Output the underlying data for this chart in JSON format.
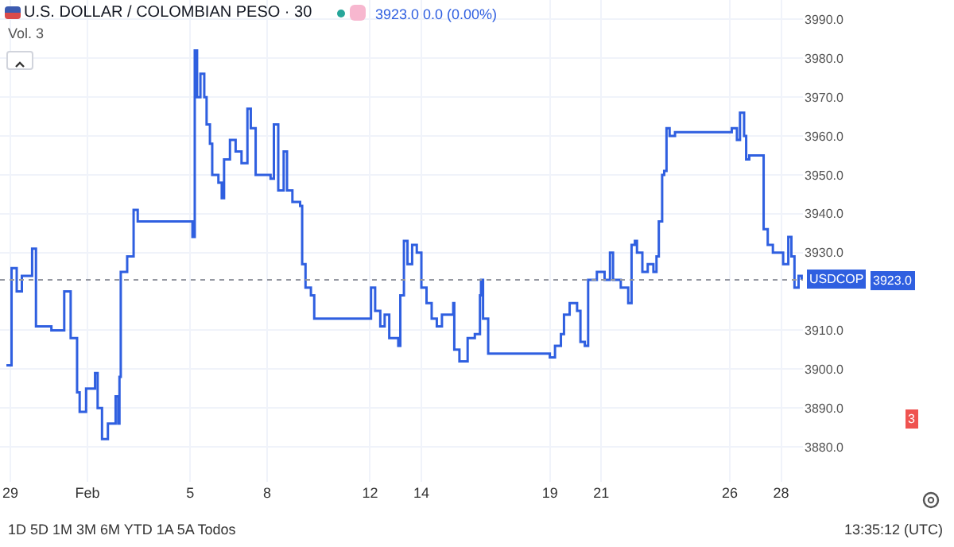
{
  "chart_data": {
    "type": "step",
    "title": "U.S. DOLLAR / COLOMBIAN PESO · 30",
    "x": [
      "--01-28T20:24",
      "--01-29T01:12",
      "--01-29T06:00",
      "--01-29T10:48",
      "--01-29T20:24",
      "--01-30T00:00",
      "--01-30T14:24",
      "--01-31T02:24",
      "--01-31T08:24",
      "--01-31T14:24",
      "--01-31T16:48",
      "--01-31T22:48",
      "--02-01T07:12",
      "--02-01T09:36",
      "--02-01T13:41",
      "--02-01T19:12",
      "--02-02T02:24",
      "--02-02T04:48",
      "--02-02T06:00",
      "--02-02T07:12",
      "--02-02T13:12",
      "--02-02T19:12",
      "--02-02T23:02",
      "--02-05T02:10",
      "--02-05T04:19",
      "--02-05T06:29",
      "--02-05T09:36",
      "--02-05T13:12",
      "--02-05T15:22",
      "--02-05T18:29",
      "--02-05T20:38",
      "--02-06T02:24",
      "--02-06T05:31",
      "--02-06T07:41",
      "--02-06T13:12",
      "--02-06T18:29",
      "--02-07T00:00",
      "--02-07T05:31",
      "--02-07T08:38",
      "--02-07T13:12",
      "--02-07T21:36",
      "--02-08T03:07",
      "--02-08T06:14",
      "--02-08T10:19",
      "--02-08T15:22",
      "--02-08T18:29",
      "--02-08T23:31",
      "--02-09T06:43",
      "--02-09T08:38",
      "--02-09T11:46",
      "--02-09T16:48",
      "--02-09T19:55",
      "--02-12T00:58",
      "--02-12T04:48",
      "--02-12T09:36",
      "--02-12T13:41",
      "--02-12T18:00",
      "--02-13T02:24",
      "--02-13T04:19",
      "--02-13T07:41",
      "--02-13T11:02",
      "--02-13T15:22",
      "--02-13T19:41",
      "--02-14T00:00",
      "--02-14T04:48",
      "--02-14T09:36",
      "--02-14T14:24",
      "--02-14T19:12",
      "--02-15T05:46",
      "--02-15T06:43",
      "--02-15T11:31",
      "--02-15T19:12",
      "--02-16T01:55",
      "--02-16T06:43",
      "--02-16T07:41",
      "--02-16T09:36",
      "--02-16T14:24",
      "--02-19T00:00",
      "--02-19T04:48",
      "--02-19T10:19",
      "--02-19T13:12",
      "--02-19T18:29",
      "--02-20T01:26",
      "--02-20T04:34",
      "--02-20T08:38",
      "--02-20T11:46",
      "--02-20T19:55",
      "--02-21T03:07",
      "--02-21T08:10",
      "--02-21T11:02",
      "--02-21T18:14",
      "--02-22T01:12",
      "--02-22T04:19",
      "--02-22T07:26",
      "--02-22T09:22",
      "--02-22T14:24",
      "--02-22T19:26",
      "--02-23T00:43",
      "--02-23T03:36",
      "--02-23T05:46",
      "--02-23T08:53",
      "--02-23T10:48",
      "--02-23T12:58",
      "--02-23T15:50",
      "--02-23T20:53",
      "--02-26T01:55",
      "--02-26T06:43",
      "--02-26T09:36",
      "--02-26T13:26",
      "--02-26T15:22",
      "--02-26T18:14",
      "--02-27T06:43",
      "--02-27T07:41",
      "--02-27T11:31",
      "--02-27T16:19",
      "--02-27T21:07",
      "--02-28T01:55",
      "--02-28T06:43",
      "--02-28T09:36",
      "--02-28T12:29",
      "--02-28T16:19",
      "--02-28T19:12"
    ],
    "series": [
      {
        "color": "#2f5fe0",
        "values": [
          3901,
          3926,
          3920,
          3924,
          3931,
          3911,
          3910,
          3920,
          3908,
          3894,
          3889,
          3895,
          3899,
          3890,
          3882,
          3886,
          3893,
          3886,
          3898,
          3925,
          3929,
          3941,
          3938,
          3934,
          3982,
          3970,
          3976,
          3970,
          3963,
          3958,
          3950,
          3948,
          3944,
          3954,
          3959,
          3956,
          3953,
          3967,
          3962,
          3950,
          3950,
          3949,
          3963,
          3946,
          3956,
          3946,
          3943,
          3942,
          3927,
          3921,
          3919,
          3913,
          3921,
          3915,
          3911,
          3914,
          3908,
          3906,
          3919,
          3933,
          3927,
          3932,
          3930,
          3921,
          3917,
          3913,
          3911,
          3914,
          3917,
          3905,
          3902,
          3908,
          3909,
          3919,
          3923,
          3913,
          3904,
          3903,
          3906,
          3909,
          3914,
          3917,
          3915,
          3907,
          3906,
          3923,
          3925,
          3923,
          3930,
          3923,
          3921,
          3917,
          3932,
          3933,
          3930,
          3925,
          3927,
          3925,
          3929,
          3938,
          3950,
          3951,
          3962,
          3960,
          3961,
          3962,
          3959,
          3966,
          3960,
          3954,
          3955,
          3955,
          3936,
          3932,
          3930,
          3930,
          3927,
          3934,
          3929,
          3921,
          3924,
          3923
        ]
      }
    ],
    "xlim": [
      "--01-28T14:24",
      "--02-28T20:24"
    ],
    "xticks": [
      {
        "value": "--01-29",
        "label": "29"
      },
      {
        "value": "--02-01",
        "label": "Feb"
      },
      {
        "value": "--02-05",
        "label": "5"
      },
      {
        "value": "--02-08",
        "label": "8"
      },
      {
        "value": "--02-12",
        "label": "12"
      },
      {
        "value": "--02-14",
        "label": "14"
      },
      {
        "value": "--02-19",
        "label": "19"
      },
      {
        "value": "--02-21",
        "label": "21"
      },
      {
        "value": "--02-26",
        "label": "26"
      },
      {
        "value": "--02-28",
        "label": "28"
      }
    ],
    "ylim": [
      3871,
      3995
    ],
    "yticks": [
      {
        "value": 3880,
        "label": "3880.0"
      },
      {
        "value": 3890,
        "label": "3890.0"
      },
      {
        "value": 3900,
        "label": "3900.0"
      },
      {
        "value": 3910,
        "label": "3910.0"
      },
      {
        "value": 3930,
        "label": "3930.0"
      },
      {
        "value": 3940,
        "label": "3940.0"
      },
      {
        "value": 3950,
        "label": "3950.0"
      },
      {
        "value": 3960,
        "label": "3960.0"
      },
      {
        "value": 3970,
        "label": "3970.0"
      },
      {
        "value": 3980,
        "label": "3980.0"
      },
      {
        "value": 3990,
        "label": "3990.0"
      }
    ],
    "grid": true,
    "line_style": "solid",
    "marker": "none",
    "ref_lines": [
      {
        "axis": "y",
        "value": 3923,
        "label": "USDCOP",
        "color": "#9598a1",
        "line_style": "dotted"
      }
    ],
    "annotations": [
      "3923.0 0.0 (0.00%)",
      "Vol. 3",
      "3",
      "1D 5D 1M 3M 6M YTD 1A 5A Todos",
      "13:35:12 (UTC)",
      "3923.0"
    ]
  }
}
